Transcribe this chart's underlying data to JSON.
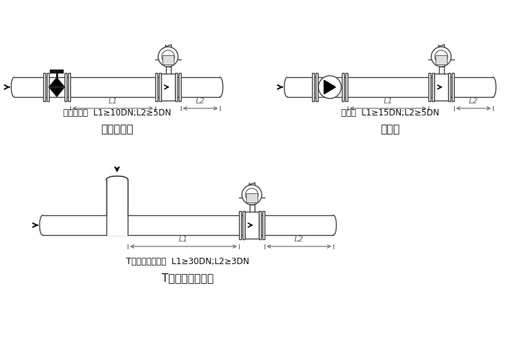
{
  "bg_color": "#ffffff",
  "line_color": "#444444",
  "gray_color": "#666666",
  "light_gray": "#dddddd",
  "dark_color": "#111111",
  "label1_spec": "截止阀下游  L1≥10DN;L2≥5DN",
  "label1_title": "截止阀下游",
  "label2_spec": "泵下游  L1≥15DN;L2≥5DN",
  "label2_title": "泵下游",
  "label3_spec": "T形三通、混合流  L1≥30DN;L2≥3DN",
  "label3_title": "T形三通、混合流",
  "L1_label": "L1",
  "L2_label": "L2",
  "font_cjk": "SimHei",
  "font_fallback": "DejaVu Sans"
}
